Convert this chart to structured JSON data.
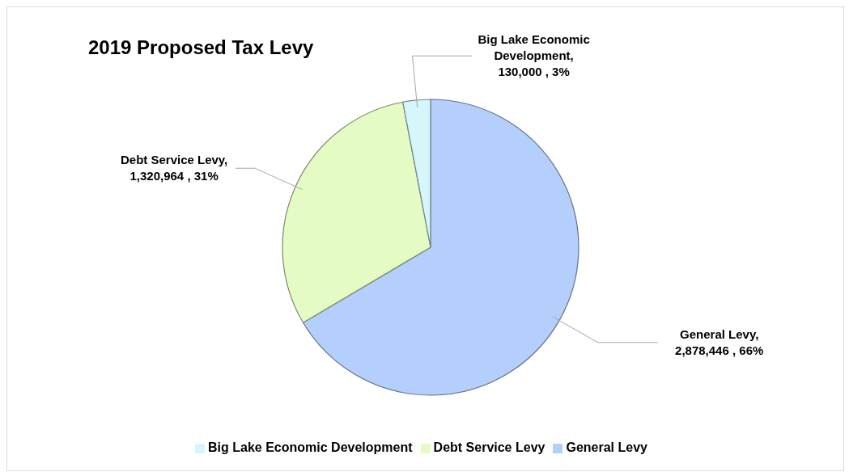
{
  "chart_data": {
    "type": "pie",
    "title": "2019 Proposed Tax Levy",
    "categories": [
      "General Levy",
      "Debt Service Levy",
      "Big Lake Economic Development"
    ],
    "values": [
      2878446,
      1320964,
      130000
    ],
    "value_labels": [
      "General Levy,\n2,878,446 , 66%",
      "Debt Service Levy,\n1,320,964 , 31%",
      "Big Lake Economic\nDevelopment,\n130,000 , 3%"
    ],
    "colors": [
      "#b4cffc",
      "#e4fbc4",
      "#d5f6fb"
    ],
    "legend": "bottom"
  }
}
